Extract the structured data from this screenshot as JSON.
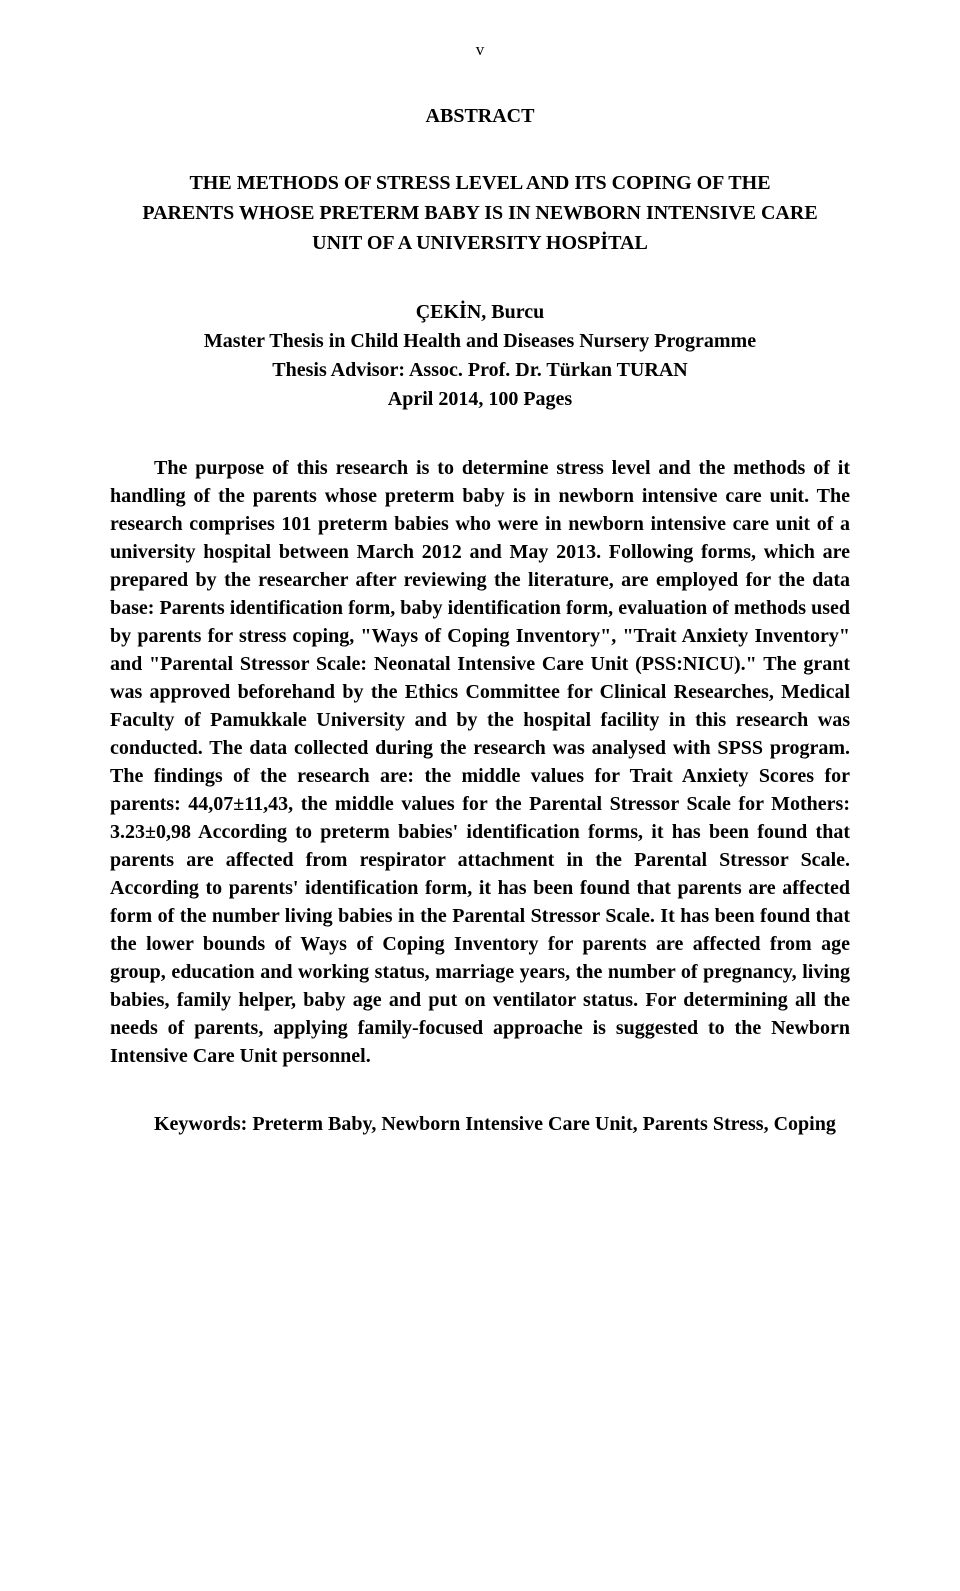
{
  "page_number": "v",
  "abstract_label": "ABSTRACT",
  "title_line1": "THE METHODS OF STRESS LEVEL AND ITS COPING OF THE",
  "title_line2": "PARENTS WHOSE PRETERM BABY IS IN NEWBORN INTENSIVE CARE",
  "title_line3": "UNIT OF A UNIVERSITY HOSPİTAL",
  "author_line1": "ÇEKİN, Burcu",
  "author_line2": "Master Thesis in Child Health and Diseases Nursery Programme",
  "author_line3": "Thesis Advisor: Assoc. Prof. Dr. Türkan TURAN",
  "author_line4": "April 2014, 100 Pages",
  "body": "The purpose of this research is to determine stress level and the methods of it handling of the parents whose preterm baby is in newborn intensive care unit. The research comprises 101 preterm babies who were in newborn intensive care unit of a university hospital between March 2012 and May 2013. Following forms, which are prepared by the researcher after reviewing the literature, are employed for the data base: Parents identification form, baby identification form, evaluation of methods used by parents for stress coping, \"Ways of Coping Inventory\", \"Trait Anxiety Inventory\" and \"Parental Stressor Scale: Neonatal Intensive Care Unit (PSS:NICU).\" The grant was approved beforehand by the Ethics Committee for Clinical Researches, Medical Faculty of Pamukkale University and by the hospital facility in this research was conducted. The data collected during the research was analysed with SPSS program. The findings of the research are: the middle values for Trait Anxiety Scores for parents: 44,07±11,43, the middle values for the Parental Stressor Scale for Mothers: 3.23±0,98 According to preterm babies' identification forms, it has been found that parents are affected from respirator attachment in the Parental Stressor Scale. According to parents' identification form, it has been found that parents are affected form of the number living babies in the Parental Stressor Scale. It has been found that the lower bounds of Ways of Coping Inventory for parents are affected from age group, education and working status, marriage years, the number of pregnancy, living babies, family helper, baby age and put on ventilator status. For determining all the needs of parents, applying family-focused approache is suggested to the Newborn Intensive Care Unit personnel.",
  "keywords": "Keywords: Preterm Baby, Newborn Intensive Care Unit, Parents Stress, Coping"
}
